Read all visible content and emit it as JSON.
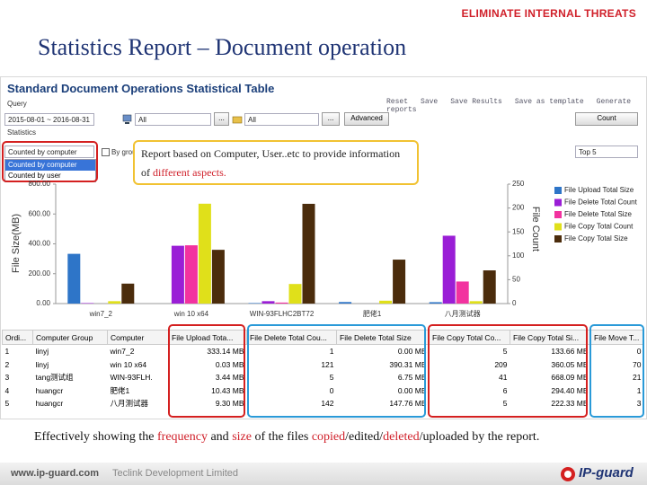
{
  "header": {
    "brand": "ELIMINATE INTERNAL THREATS",
    "title": "Statistics Report – Document operation"
  },
  "app": {
    "title": "Standard Document Operations Statistical Table",
    "actions": [
      "Reset",
      "Save",
      "Save Results",
      "Save as template",
      "Generate reports"
    ],
    "query_label": "Query",
    "date_range": "2015-08-01 ~ 2016-08-31",
    "filter_1": "All",
    "filter_2": "All",
    "browse": "...",
    "advanced": "Advanced",
    "count": "Count",
    "statistics_label": "Statistics",
    "count_by": "Counted by computer",
    "count_by_options": [
      "Counted by computer",
      "Counted by user"
    ],
    "by_group": "By group",
    "top": "Top 5"
  },
  "callout": {
    "text": "Report based on Computer, User..etc to provide information of ",
    "highlight": "different aspects."
  },
  "chart_data": {
    "type": "bar",
    "categories": [
      "win7_2",
      "win 10 x64",
      "WIN-93FLHC2BT72",
      "肥佬1",
      "八月测试器"
    ],
    "y_label": "File Size(MB)",
    "y2_label": "File Count",
    "ylim": [
      0,
      800
    ],
    "yticks": [
      {
        "value": 0,
        "label": "0.00"
      },
      {
        "value": 200,
        "label": "200.00"
      },
      {
        "value": 400,
        "label": "400.00"
      },
      {
        "value": 600,
        "label": "600.00"
      },
      {
        "value": 800,
        "label": "800.00"
      }
    ],
    "y2lim": [
      0,
      250
    ],
    "y2ticks": [
      0,
      50,
      100,
      150,
      200,
      250
    ],
    "legend": "right",
    "series": [
      {
        "name": "File Upload Total Size",
        "color": "#2e75c8",
        "values": [
          333.14,
          0.03,
          3.44,
          10.43,
          9.3
        ]
      },
      {
        "name": "File Delete Total Count",
        "color": "#9a1ed6",
        "axis": "y2",
        "values": [
          1,
          121,
          5,
          0,
          142
        ]
      },
      {
        "name": "File Delete Total Size",
        "color": "#f2329f",
        "values": [
          0.0,
          390.31,
          6.75,
          0.0,
          147.76
        ]
      },
      {
        "name": "File Copy Total Count",
        "color": "#e0e01a",
        "axis": "y2",
        "values": [
          5,
          209,
          41,
          6,
          5
        ]
      },
      {
        "name": "File Copy Total Size",
        "color": "#4b2c0c",
        "values": [
          133.66,
          360.05,
          668.09,
          294.4,
          222.33
        ]
      }
    ]
  },
  "table": {
    "header": [
      "Ordi...",
      "Computer Group",
      "Computer",
      "File Upload Tota...",
      "File Delete Total Cou...",
      "File Delete Total Size",
      "File Copy Total Co...",
      "File Copy Total Si...",
      "File Move T..."
    ],
    "rows": [
      [
        "1",
        "linyj",
        "win7_2",
        "333.14 MB",
        "1",
        "0.00 MB",
        "5",
        "133.66 MB",
        "0"
      ],
      [
        "2",
        "linyj",
        "win 10 x64",
        "0.03 MB",
        "121",
        "390.31 MB",
        "209",
        "360.05 MB",
        "70"
      ],
      [
        "3",
        "tang测试组",
        "WIN-93FLH.",
        "3.44 MB",
        "5",
        "6.75 MB",
        "41",
        "668.09 MB",
        "21"
      ],
      [
        "4",
        "huangcr",
        "肥佬1",
        "10.43 MB",
        "0",
        "0.00 MB",
        "6",
        "294.40 MB",
        "1"
      ],
      [
        "5",
        "huangcr",
        "八月测试器",
        "9.30 MB",
        "142",
        "147.76 MB",
        "5",
        "222.33 MB",
        "3"
      ]
    ]
  },
  "footer": {
    "summary": [
      "Effectively showing the ",
      "frequency",
      " and ",
      "size",
      " of the files ",
      "copied",
      "/edited/",
      "deleted",
      "/uploaded by the report."
    ],
    "website": "www.ip-guard.com",
    "company": "Teclink Development Limited",
    "logo": "IP-guard"
  }
}
